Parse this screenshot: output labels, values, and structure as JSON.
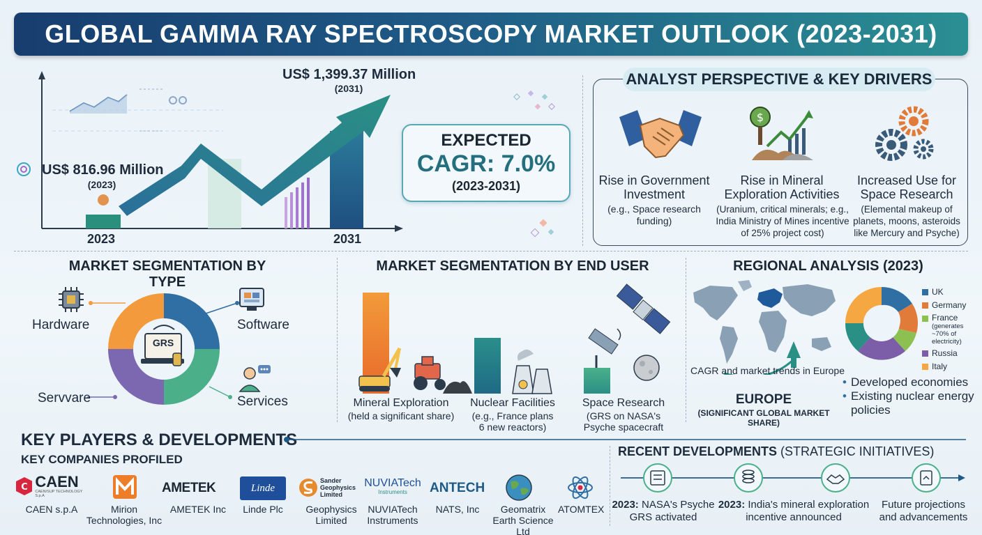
{
  "title": "GLOBAL GAMMA RAY SPECTROSCOPY MARKET OUTLOOK (2023-2031)",
  "market_chart": {
    "start_value": "US$ 816.96 Million",
    "start_year_paren": "(2023)",
    "end_value": "US$ 1,399.37 Million",
    "end_year_paren": "(2031)",
    "x_start": "2023",
    "x_end": "2031"
  },
  "cagr": {
    "expected": "EXPECTED",
    "value": "CAGR: 7.0%",
    "period": "(2023-2031)"
  },
  "analyst": {
    "title": "ANALYST PERSPECTIVE & KEY DRIVERS",
    "drivers": [
      {
        "title": "Rise in Government Investment",
        "detail": "(e.g., Space research funding)",
        "icon": "handshake-icon"
      },
      {
        "title": "Rise in Mineral Exploration Activities",
        "detail": "(Uranium, critical minerals; e.g., India Ministry of Mines incentive of 25% project cost)",
        "icon": "mining-growth-icon"
      },
      {
        "title": "Increased Use for Space Research",
        "detail": "(Elemental makeup of planets, moons, asteroids like Mercury and Psyche)",
        "icon": "gears-icon"
      }
    ]
  },
  "segmentation_type": {
    "title": "MARKET SEGMENTATION BY TYPE",
    "center_label": "GRS",
    "labels": {
      "hardware": "Hardware",
      "software": "Software",
      "servware": "Servvare",
      "services": "Services"
    },
    "colors": {
      "hardware": "#f39a3c",
      "software": "#2f6fa3",
      "services": "#4bb08a",
      "servware": "#7b68b1"
    }
  },
  "segmentation_end_user": {
    "title": "MARKET SEGMENTATION BY END USER",
    "items": [
      {
        "label": "Mineral Exploration",
        "detail": "(held a significant share)"
      },
      {
        "label": "Nuclear Facilities",
        "detail": "(e.g., France plans 6 new reactors)"
      },
      {
        "label": "Space Research",
        "detail": "(GRS on NASA's Psyche spacecraft"
      }
    ]
  },
  "regional": {
    "title": "REGIONAL ANALYSIS (2023)",
    "map_caption": "CAGR and market trends in Europe",
    "region": "EUROPE",
    "region_note": "(SIGNIFICANT GLOBAL MARKET SHARE)",
    "bullets": [
      "Developed economies",
      "Existing nuclear energy policies"
    ],
    "legend": [
      {
        "label": "UK",
        "note": "",
        "color": "#2f6fa3"
      },
      {
        "label": "Germany",
        "note": "",
        "color": "#e07b39"
      },
      {
        "label": "France",
        "note": "(generates ~70% of electricity)",
        "color": "#8cc152"
      },
      {
        "label": "Russia",
        "note": "",
        "color": "#7b5ea7"
      },
      {
        "label": "Italy",
        "note": "",
        "color": "#f5a742"
      }
    ]
  },
  "players": {
    "title": "KEY PLAYERS & DEVELOPMENTS",
    "subtitle": "KEY COMPANIES PROFILED",
    "companies": [
      {
        "logo": "CAEN",
        "logo_sub": "CAEN/SUP TECHNOLOGY S.p.A",
        "name": "CAEN s.p.A"
      },
      {
        "logo": "",
        "logo_sub": "",
        "name": "Mirion Technologies, Inc"
      },
      {
        "logo": "AMETEK",
        "logo_sub": "",
        "name": "AMETEK Inc"
      },
      {
        "logo": "Linde",
        "logo_sub": "",
        "name": "Linde Plc"
      },
      {
        "logo": "Sander Geophysics Limited",
        "logo_sub": "",
        "name": "Geophysics Limited"
      },
      {
        "logo": "NUVIATech",
        "logo_sub": "Instruments",
        "name": "NUVIATech Instruments"
      },
      {
        "logo": "ANTECH",
        "logo_sub": "",
        "name": "NATS, Inc"
      },
      {
        "logo": "",
        "logo_sub": "",
        "name": "Geomatrix Earth Science Ltd"
      },
      {
        "logo": "",
        "logo_sub": "",
        "name": "ATOMTEX"
      }
    ]
  },
  "developments": {
    "title_bold": "RECENT DEVELOPMENTS",
    "title_rest": " (STRATEGIC INITIATIVES)",
    "items": [
      {
        "year": "2023:",
        "text": " NASA's Psyche GRS activated"
      },
      {
        "year": "2023:",
        "text": " India's mineral exploration incentive announced"
      },
      {
        "year": "",
        "text": "Future projections and advancements"
      }
    ]
  }
}
